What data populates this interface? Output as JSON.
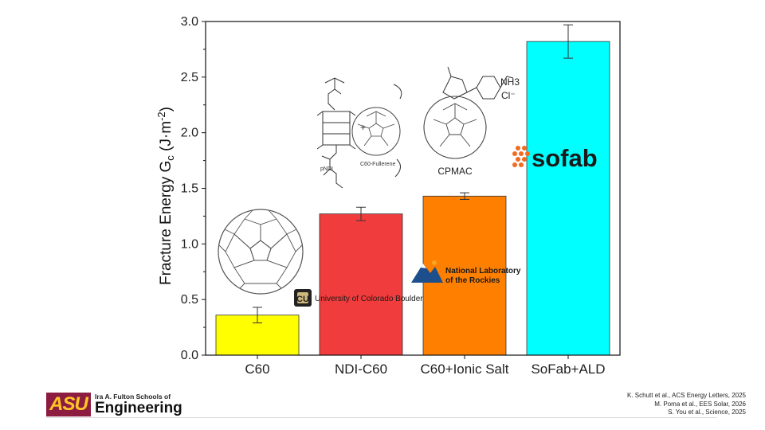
{
  "chart_data": {
    "type": "bar",
    "categories": [
      "C60",
      "NDI-C60",
      "C60+Ionic Salt",
      "SoFab+ALD"
    ],
    "values": [
      0.36,
      1.27,
      1.43,
      2.82
    ],
    "errors": [
      0.07,
      0.06,
      0.03,
      0.15
    ],
    "colors": [
      "#ffff00",
      "#f03c3c",
      "#ff8000",
      "#00ffff"
    ],
    "ylabel_main": "Fracture Energy G",
    "ylabel_sub": "c",
    "ylabel_units_open": " (J·m",
    "ylabel_units_sup": "-2",
    "ylabel_units_close": ")",
    "ylim": [
      0,
      3.0
    ],
    "yticks": [
      "0.0",
      "0.5",
      "1.0",
      "1.5",
      "2.0",
      "2.5",
      "3.0"
    ],
    "grid": false
  },
  "annotations": {
    "pndi_label": "pNDI",
    "fullerene_label": "C60-Fullerene",
    "cpmac_label": "CPMAC",
    "nh3_label": "NH3",
    "cl_label": "Cl⁻"
  },
  "logos": {
    "sofab": "sofab",
    "cu_boulder": "University of Colorado Boulder",
    "nlr_line1": "National Laboratory",
    "nlr_line2": "of the Rockies",
    "asu_mark": "ASU",
    "asu_line1": "Ira A. Fulton Schools of",
    "asu_line2": "Engineering"
  },
  "references": [
    "K. Schutt et al., ACS Energy Letters, 2025",
    "M. Poma et al., EES Solar, 2026",
    "S. You et al., Science, 2025"
  ],
  "colors": {
    "asu_maroon": "#8c1d40",
    "asu_gold": "#ffc627",
    "sofab_orange": "#f26b21",
    "nlr_blue": "#1c4f8c"
  }
}
